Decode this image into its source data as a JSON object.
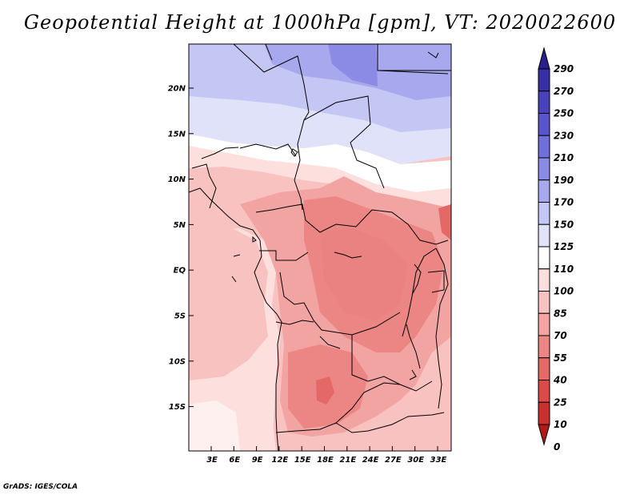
{
  "title": "Geopotential Height at 1000hPa [gpm], VT: 2020022600",
  "credit": "GrADS: IGES/COLA",
  "map": {
    "lat_labels": [
      "20N",
      "15N",
      "10N",
      "5N",
      "EQ",
      "5S",
      "10S",
      "15S"
    ],
    "lon_labels": [
      "3E",
      "6E",
      "9E",
      "12E",
      "15E",
      "18E",
      "21E",
      "24E",
      "27E",
      "30E",
      "33E"
    ]
  },
  "colorbar": {
    "labels": [
      "290",
      "270",
      "250",
      "230",
      "210",
      "190",
      "170",
      "150",
      "125",
      "110",
      "100",
      "85",
      "70",
      "55",
      "40",
      "25",
      "10",
      "0"
    ],
    "colors": [
      "#2a1f8c",
      "#3a30a6",
      "#4a42bb",
      "#5a55cc",
      "#7070dc",
      "#8b8be6",
      "#a8a8ee",
      "#c4c6f4",
      "#e0e2fa",
      "#ffffff",
      "#fde0de",
      "#f8c2c0",
      "#f2a4a2",
      "#ec8684",
      "#e46866",
      "#dc4a48",
      "#cc302e",
      "#b01a18"
    ]
  }
}
